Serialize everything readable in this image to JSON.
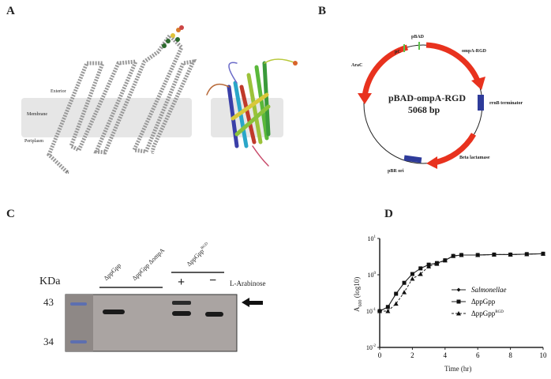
{
  "panels": {
    "a": "A",
    "b": "B",
    "c": "C",
    "d": "D"
  },
  "panel_a": {
    "exterior": "Exterior",
    "membrane": "Membrane",
    "periplasm": "Periplasm",
    "n_term": "N",
    "c_term": "C"
  },
  "panel_b": {
    "plasmid_name": "pBAD-ompA-RGD",
    "size": "5068 bp",
    "features": {
      "pc": "pC",
      "pbad": "pBAD",
      "ompa": "ompA-RGD",
      "arac": "AraC",
      "rrnb": "rrnB terminator",
      "bla": "Beta lactamase",
      "ori": "pBR ori"
    },
    "colors": {
      "gene": "#e8321e",
      "terminator": "#2e3b9a",
      "promoter": "#5cc24a"
    }
  },
  "panel_c": {
    "unit": "KDa",
    "marker_43": "43",
    "marker_34": "34",
    "lanes": [
      "ΔppGpp",
      "ΔppGpp ΔompA",
      "ΔppGpp"
    ],
    "lane3_sup": "RGD",
    "plus": "+",
    "minus": "−",
    "inducer": "L-Arabinose"
  },
  "chart_data": {
    "type": "line",
    "xlabel": "Time (hr)",
    "ylabel": "A",
    "ylabel_sub": "600",
    "ylabel_suffix": " (log10)",
    "yscale": "log",
    "ylim": [
      0.01,
      10
    ],
    "xlim": [
      0,
      10
    ],
    "xticks": [
      "0",
      "2",
      "4",
      "6",
      "8",
      "10"
    ],
    "yticks": [
      {
        "base": "10",
        "exp": "-2"
      },
      {
        "base": "10",
        "exp": "-1"
      },
      {
        "base": "10",
        "exp": "0"
      },
      {
        "base": "10",
        "exp": "1"
      }
    ],
    "x": [
      0,
      0.5,
      1,
      1.5,
      2,
      2.5,
      3,
      3.5,
      4,
      4.5,
      5,
      6,
      7,
      8,
      9,
      10
    ],
    "series": [
      {
        "name": "Salmonellae",
        "marker": "diamond",
        "values": [
          0.1,
          0.13,
          0.3,
          0.6,
          1.05,
          1.5,
          1.9,
          2.1,
          2.5,
          3.3,
          3.5,
          3.5,
          3.6,
          3.6,
          3.7,
          3.8
        ]
      },
      {
        "name": "ΔppGpp",
        "marker": "square",
        "values": [
          0.1,
          0.13,
          0.3,
          0.6,
          1.05,
          1.5,
          1.9,
          2.1,
          2.5,
          3.3,
          3.5,
          3.5,
          3.6,
          3.6,
          3.7,
          3.8
        ]
      },
      {
        "name": "ΔppGpp",
        "name_sup": "RGD",
        "marker": "triangle",
        "values": [
          0.1,
          0.1,
          0.16,
          0.33,
          0.78,
          1.05,
          1.7,
          2.0,
          2.5,
          3.3,
          3.5,
          3.5,
          3.6,
          3.6,
          3.7,
          3.8
        ]
      }
    ],
    "legend": "center-right"
  }
}
